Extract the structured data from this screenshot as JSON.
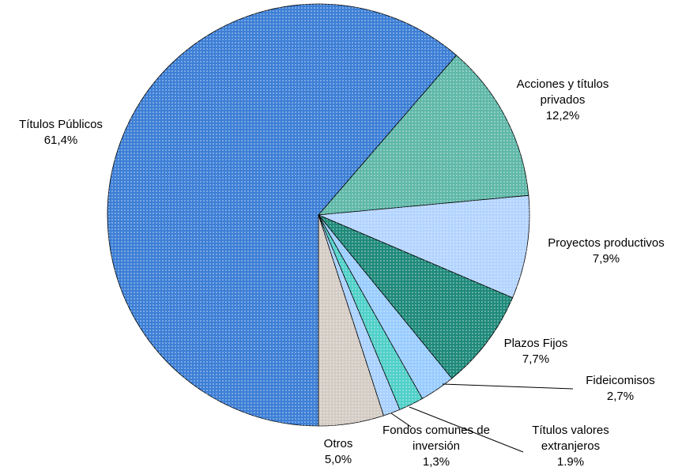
{
  "chart_data": {
    "type": "pie",
    "categories": [
      "Títulos Públicos",
      "Acciones y títulos privados",
      "Proyectos productivos",
      "Plazos Fijos",
      "Fideicomisos",
      "Títulos valores extranjeros",
      "Fondos comunes de inversión",
      "Otros"
    ],
    "values": [
      61.4,
      12.2,
      7.9,
      7.7,
      2.7,
      1.9,
      1.3,
      5.0
    ],
    "value_labels": [
      "61,4%",
      "12,2%",
      "7,9%",
      "7,7%",
      "2,7%",
      "1.9%",
      "1,3%",
      "5,0%"
    ],
    "colors": [
      "#3d7fd6",
      "#5fb8a8",
      "#b3d4ff",
      "#1f8a7a",
      "#99ccff",
      "#4fd0c8",
      "#a8d0ff",
      "#d4ccc4"
    ]
  }
}
